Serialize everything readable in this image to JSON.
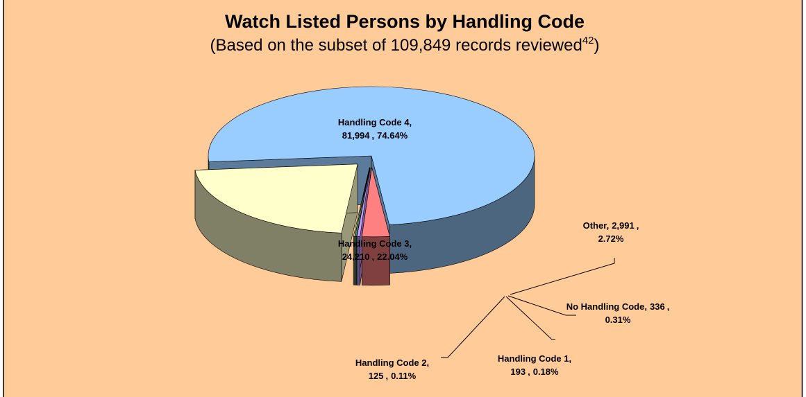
{
  "chart_data": {
    "type": "pie",
    "title": "Watch Listed Persons by Handling Code",
    "subtitle": "(Based on the subset of 109,849 records reviewed",
    "subtitle_note": "42",
    "subtitle_end": ")",
    "label_separator": ",",
    "categories": [
      "Handling Code 4",
      "Other",
      "No Handling Code",
      "Handling Code 1",
      "Handling Code 2",
      "Handling Code 3"
    ],
    "values": [
      81994,
      2991,
      336,
      193,
      125,
      24210
    ],
    "value_labels": [
      "81,994",
      "2,991",
      "336",
      "193",
      "125",
      "24,210"
    ],
    "percents": [
      74.64,
      2.72,
      0.31,
      0.18,
      0.11,
      22.04
    ],
    "percent_labels": [
      "74.64%",
      "2.72%",
      "0.31%",
      "0.18%",
      "0.11%",
      "22.04%"
    ],
    "colors": [
      "#99ccff",
      "#ff8080",
      "#cc99ff",
      "#339966",
      "#ffcc99",
      "#ffffcc"
    ]
  }
}
